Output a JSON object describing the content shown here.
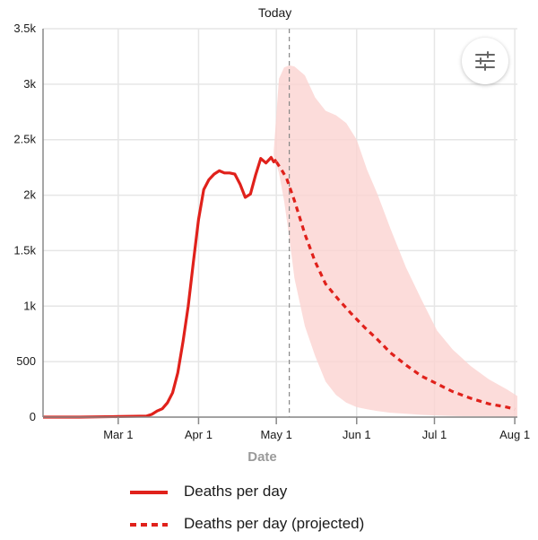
{
  "chart_data": {
    "type": "line",
    "xlabel": "Date",
    "ylabel": "",
    "ylim": [
      0,
      3500
    ],
    "yticks": [
      0,
      500,
      1000,
      1500,
      2000,
      2500,
      3000,
      3500
    ],
    "ytick_labels": [
      "0",
      "500",
      "1k",
      "1.5k",
      "2k",
      "2.5k",
      "3k",
      "3.5k"
    ],
    "xlim": [
      "2020-02-01",
      "2020-08-02"
    ],
    "xticks": [
      "2020-03-01",
      "2020-04-01",
      "2020-05-01",
      "2020-06-01",
      "2020-07-01",
      "2020-08-01"
    ],
    "xtick_labels": [
      "Mar 1",
      "Apr 1",
      "May 1",
      "Jun 1",
      "Jul 1",
      "Aug 1"
    ],
    "grid": true,
    "today_marker": {
      "label": "Today",
      "date": "2020-05-06"
    },
    "series": [
      {
        "name": "Deaths per day",
        "style": "solid",
        "color": "#e0211b",
        "x": [
          "2020-02-01",
          "2020-02-15",
          "2020-03-01",
          "2020-03-12",
          "2020-03-14",
          "2020-03-16",
          "2020-03-18",
          "2020-03-20",
          "2020-03-22",
          "2020-03-24",
          "2020-03-26",
          "2020-03-28",
          "2020-03-30",
          "2020-04-01",
          "2020-04-03",
          "2020-04-05",
          "2020-04-07",
          "2020-04-09",
          "2020-04-11",
          "2020-04-13",
          "2020-04-15",
          "2020-04-17",
          "2020-04-19",
          "2020-04-21",
          "2020-04-23",
          "2020-04-25",
          "2020-04-27",
          "2020-04-29",
          "2020-04-30",
          "2020-05-01"
        ],
        "y": [
          0,
          0,
          5,
          10,
          25,
          55,
          75,
          130,
          220,
          400,
          680,
          1000,
          1400,
          1780,
          2050,
          2140,
          2190,
          2220,
          2200,
          2200,
          2190,
          2100,
          1980,
          2010,
          2180,
          2330,
          2290,
          2340,
          2300,
          2320
        ]
      },
      {
        "name": "Deaths per day (projected)",
        "style": "dashed",
        "color": "#e0211b",
        "x": [
          "2020-05-01",
          "2020-05-03",
          "2020-05-05",
          "2020-05-08",
          "2020-05-12",
          "2020-05-16",
          "2020-05-20",
          "2020-05-25",
          "2020-05-30",
          "2020-06-04",
          "2020-06-09",
          "2020-06-14",
          "2020-06-20",
          "2020-06-26",
          "2020-07-02",
          "2020-07-08",
          "2020-07-15",
          "2020-07-22",
          "2020-07-29",
          "2020-08-01"
        ],
        "y": [
          2300,
          2230,
          2150,
          1950,
          1650,
          1400,
          1200,
          1060,
          930,
          810,
          700,
          580,
          470,
          370,
          300,
          230,
          170,
          120,
          90,
          70
        ]
      }
    ],
    "uncertainty_band": {
      "x": [
        "2020-04-30",
        "2020-05-02",
        "2020-05-04",
        "2020-05-06",
        "2020-05-08",
        "2020-05-12",
        "2020-05-16",
        "2020-05-20",
        "2020-05-24",
        "2020-05-28",
        "2020-06-01",
        "2020-06-05",
        "2020-06-09",
        "2020-06-14",
        "2020-06-20",
        "2020-06-26",
        "2020-07-02",
        "2020-07-08",
        "2020-07-15",
        "2020-07-22",
        "2020-07-29",
        "2020-08-02"
      ],
      "upper": [
        2400,
        3050,
        3150,
        3170,
        3160,
        3080,
        2880,
        2760,
        2720,
        2650,
        2500,
        2230,
        2010,
        1700,
        1350,
        1060,
        780,
        610,
        460,
        340,
        250,
        190
      ],
      "lower": [
        2350,
        2200,
        1950,
        1620,
        1250,
        820,
        550,
        320,
        200,
        130,
        90,
        70,
        55,
        40,
        30,
        20,
        14,
        10,
        7,
        5,
        3,
        2
      ]
    }
  },
  "today_label": "Today",
  "legend": [
    {
      "label": "Deaths per day",
      "style": "solid"
    },
    {
      "label": "Deaths per day (projected)",
      "style": "dashed"
    }
  ],
  "settings_button": {
    "icon": "sliders-icon"
  },
  "colors": {
    "line": "#e0211b",
    "band": "#fbd3d1",
    "grid": "#e6e6e6",
    "today_line": "#888888"
  }
}
